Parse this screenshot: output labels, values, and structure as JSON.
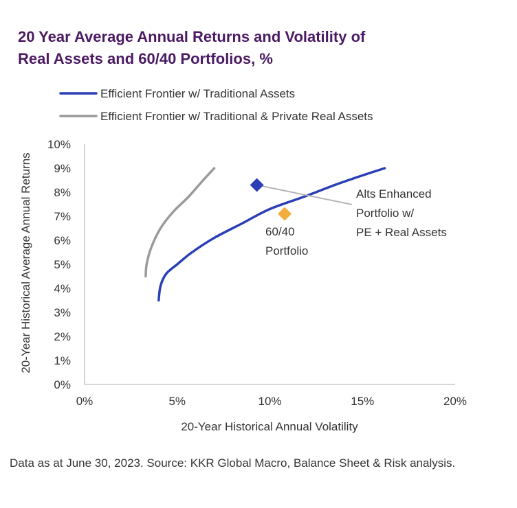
{
  "title_lines": [
    "20 Year Average Annual Returns and Volatility of",
    "Real Assets and 60/40 Portfolios, %"
  ],
  "source_note": "Data as at June 30, 2023. Source: KKR Global Macro, Balance Sheet & Risk analysis.",
  "colors": {
    "title": "#4b1a63",
    "traditional": "#2a3fb5",
    "private_real": "#9a9a9a",
    "portfolio_6040": "#f2ad3c",
    "alts_enhanced": "#2a3fb5",
    "axis": "#c8c8c8"
  },
  "chart_data": {
    "type": "line",
    "xlabel": "20-Year Historical Annual Volatility",
    "ylabel": "20-Year Historical Average Annual Returns",
    "xlim": [
      0,
      20
    ],
    "ylim": [
      0,
      10
    ],
    "x_ticks": [
      0,
      5,
      10,
      15,
      20
    ],
    "x_tick_labels": [
      "0%",
      "5%",
      "10%",
      "15%",
      "20%"
    ],
    "y_ticks": [
      0,
      1,
      2,
      3,
      4,
      5,
      6,
      7,
      8,
      9,
      10
    ],
    "y_tick_labels": [
      "0%",
      "1%",
      "2%",
      "3%",
      "4%",
      "5%",
      "6%",
      "7%",
      "8%",
      "9%",
      "10%"
    ],
    "grid": false,
    "legend_position": "top-left",
    "series": [
      {
        "name": "Efficient Frontier w/ Traditional Assets",
        "color_key": "traditional",
        "x": [
          4.0,
          4.1,
          4.4,
          5.0,
          5.8,
          7.0,
          8.5,
          10.0,
          11.8,
          13.5,
          15.0,
          16.2
        ],
        "y": [
          3.5,
          4.1,
          4.6,
          5.0,
          5.5,
          6.1,
          6.7,
          7.3,
          7.8,
          8.3,
          8.7,
          9.0
        ]
      },
      {
        "name": "Efficient Frontier w/ Traditional & Private Real Assets",
        "color_key": "private_real",
        "x": [
          3.3,
          3.35,
          3.6,
          4.1,
          4.8,
          5.6,
          6.4,
          7.0
        ],
        "y": [
          4.5,
          5.0,
          5.7,
          6.5,
          7.2,
          7.8,
          8.5,
          9.0
        ]
      }
    ],
    "points": [
      {
        "name": "Alts Enhanced Portfolio w/ PE + Real Assets",
        "label_lines": [
          "Alts Enhanced",
          "Portfolio w/",
          "PE + Real Assets"
        ],
        "x": 9.3,
        "y": 8.3,
        "color_key": "alts_enhanced"
      },
      {
        "name": "60/40 Portfolio",
        "label_lines": [
          "60/40",
          "Portfolio"
        ],
        "x": 10.8,
        "y": 7.1,
        "color_key": "portfolio_6040"
      }
    ]
  }
}
